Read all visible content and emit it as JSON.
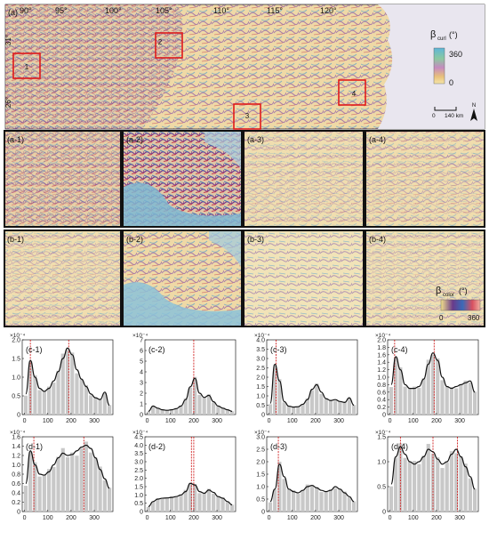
{
  "panel_a": {
    "label": "(a)",
    "lon_labels": [
      "90°",
      "95°",
      "100°",
      "105°",
      "110°",
      "115°",
      "120°"
    ],
    "lat_labels": [
      "31°",
      "26°"
    ],
    "roi_labels": [
      "1",
      "2",
      "3",
      "4"
    ],
    "legend": {
      "symbol": "β",
      "subscript": "curl",
      "unit": "(°)",
      "max": "360",
      "min": "0"
    },
    "scalebar": {
      "zero": "0",
      "dist": "140 km"
    },
    "north": "N"
  },
  "row_a_labels": [
    "(a-1)",
    "(a-2)",
    "(a-3)",
    "(a-4)"
  ],
  "row_b_labels": [
    "(b-1)",
    "(b-2)",
    "(b-3)",
    "(b-4)"
  ],
  "legend_b": {
    "symbol": "β",
    "subscript": "color",
    "unit": "(°)",
    "min": "0",
    "max": "360"
  },
  "colors": {
    "map_yellow": "#f0dca0",
    "map_purple": "#8a5a9a",
    "map_blue": "#6ea8c8",
    "map_red": "#c84850",
    "sea": "#e8e6ee",
    "roi_box": "#e01b1b",
    "curve": "#111111",
    "bar": "#c8c8c8",
    "peak_line": "#d02020"
  },
  "chart_data": [
    {
      "type": "bar",
      "label": "(c-1)",
      "exponent": "×10⁻⁴",
      "ylim": [
        0,
        2.0
      ],
      "yticks": [
        "0",
        "0.5",
        "1.0",
        "1.5",
        "2.0"
      ],
      "xticks": [
        "0",
        "100",
        "200",
        "300"
      ],
      "xlim": [
        -10,
        380
      ],
      "x": [
        5,
        25,
        45,
        65,
        85,
        105,
        125,
        145,
        165,
        185,
        205,
        225,
        245,
        265,
        285,
        305,
        325,
        345,
        365
      ],
      "curve": [
        0.55,
        1.45,
        1.0,
        0.7,
        0.62,
        0.7,
        0.9,
        1.15,
        1.5,
        1.78,
        1.6,
        1.2,
        0.95,
        0.75,
        0.55,
        0.45,
        0.4,
        0.6,
        0.25
      ],
      "peaks": [
        25,
        190
      ]
    },
    {
      "type": "bar",
      "label": "(c-2)",
      "exponent": "×10⁻⁴",
      "ylim": [
        0,
        7
      ],
      "yticks": [
        "0",
        "1",
        "2",
        "3",
        "4",
        "5",
        "6",
        "7"
      ],
      "xticks": [
        "0",
        "100",
        "200",
        "300"
      ],
      "xlim": [
        -10,
        380
      ],
      "x": [
        5,
        25,
        45,
        65,
        85,
        105,
        125,
        145,
        165,
        185,
        205,
        225,
        245,
        265,
        285,
        305,
        325,
        345,
        365
      ],
      "curve": [
        0.3,
        0.8,
        0.6,
        0.45,
        0.4,
        0.45,
        0.55,
        0.8,
        1.4,
        2.6,
        3.4,
        2.0,
        1.6,
        1.8,
        1.2,
        0.8,
        0.6,
        0.45,
        0.3
      ],
      "peaks": [
        200
      ]
    },
    {
      "type": "bar",
      "label": "(c-3)",
      "exponent": "×10⁻⁴",
      "ylim": [
        0,
        4.0
      ],
      "yticks": [
        "0",
        "0.5",
        "1.0",
        "1.5",
        "2.0",
        "2.5",
        "3.0",
        "3.5",
        "4.0"
      ],
      "xticks": [
        "0",
        "100",
        "200",
        "300"
      ],
      "xlim": [
        -10,
        380
      ],
      "x": [
        5,
        25,
        45,
        65,
        85,
        105,
        125,
        145,
        165,
        185,
        205,
        225,
        245,
        265,
        285,
        305,
        325,
        345,
        365
      ],
      "curve": [
        0.6,
        2.7,
        1.8,
        0.7,
        0.45,
        0.4,
        0.42,
        0.55,
        0.8,
        1.35,
        1.6,
        1.2,
        0.85,
        0.75,
        0.8,
        0.7,
        0.65,
        0.9,
        0.5
      ],
      "peaks": [
        30
      ]
    },
    {
      "type": "bar",
      "label": "(c-4)",
      "exponent": "×10⁻⁴",
      "ylim": [
        0,
        2.0
      ],
      "yticks": [
        "0",
        "0.2",
        "0.4",
        "0.6",
        "0.8",
        "1.0",
        "1.2",
        "1.4",
        "1.6",
        "1.8",
        "2.0"
      ],
      "xticks": [
        "0",
        "100",
        "200",
        "300"
      ],
      "xlim": [
        -10,
        380
      ],
      "x": [
        5,
        25,
        45,
        65,
        85,
        105,
        125,
        145,
        165,
        185,
        205,
        225,
        245,
        265,
        285,
        305,
        325,
        345,
        365
      ],
      "curve": [
        0.8,
        1.55,
        1.2,
        0.8,
        0.7,
        0.7,
        0.75,
        0.95,
        1.35,
        1.65,
        1.45,
        1.0,
        0.75,
        0.7,
        0.75,
        0.8,
        0.85,
        0.9,
        0.6
      ],
      "peaks": [
        20,
        190
      ]
    },
    {
      "type": "bar",
      "label": "(d-1)",
      "exponent": "×10⁻⁴",
      "ylim": [
        0,
        1.6
      ],
      "yticks": [
        "0",
        "0.2",
        "0.4",
        "0.6",
        "0.8",
        "1.0",
        "1.2",
        "1.4",
        "1.6"
      ],
      "xticks": [
        "0",
        "100",
        "200",
        "300"
      ],
      "xlim": [
        -10,
        380
      ],
      "x": [
        5,
        25,
        45,
        65,
        85,
        105,
        125,
        145,
        165,
        185,
        205,
        225,
        245,
        265,
        285,
        305,
        325,
        345,
        365
      ],
      "curve": [
        0.6,
        1.3,
        1.0,
        0.8,
        0.78,
        0.85,
        1.0,
        1.15,
        1.25,
        1.2,
        1.22,
        1.3,
        1.38,
        1.42,
        1.35,
        1.15,
        0.9,
        0.7,
        0.5
      ],
      "peaks": [
        40,
        255
      ]
    },
    {
      "type": "bar",
      "label": "(d-2)",
      "exponent": "×10⁻⁴",
      "ylim": [
        0,
        4.5
      ],
      "yticks": [
        "0",
        "0.5",
        "1.0",
        "1.5",
        "2.0",
        "2.5",
        "3.0",
        "3.5",
        "4.0",
        "4.5"
      ],
      "xticks": [
        "0",
        "100",
        "200",
        "300"
      ],
      "xlim": [
        -10,
        380
      ],
      "x": [
        5,
        25,
        45,
        65,
        85,
        105,
        125,
        145,
        165,
        185,
        205,
        225,
        245,
        265,
        285,
        305,
        325,
        345,
        365
      ],
      "curve": [
        0.3,
        0.6,
        0.75,
        0.8,
        0.82,
        0.85,
        0.9,
        1.0,
        1.2,
        1.7,
        1.6,
        1.2,
        1.1,
        1.3,
        1.15,
        0.9,
        0.8,
        0.6,
        0.4
      ],
      "peaks": [
        190,
        200
      ]
    },
    {
      "type": "bar",
      "label": "(d-3)",
      "exponent": "×10⁻⁴",
      "ylim": [
        0,
        3.0
      ],
      "yticks": [
        "0",
        "0.5",
        "1.0",
        "1.5",
        "2.0",
        "2.5",
        "3.0"
      ],
      "xticks": [
        "0",
        "100",
        "200",
        "300"
      ],
      "xlim": [
        -10,
        380
      ],
      "x": [
        5,
        25,
        45,
        65,
        85,
        105,
        125,
        145,
        165,
        185,
        205,
        225,
        245,
        265,
        285,
        305,
        325,
        345,
        365
      ],
      "curve": [
        0.4,
        0.9,
        1.9,
        1.4,
        0.9,
        0.8,
        0.75,
        0.85,
        1.0,
        1.05,
        0.95,
        0.85,
        0.8,
        0.85,
        1.0,
        0.9,
        0.75,
        0.6,
        0.4
      ],
      "peaks": [
        40
      ]
    },
    {
      "type": "bar",
      "label": "(d-4)",
      "exponent": "×10⁻⁴",
      "ylim": [
        0,
        1.5
      ],
      "yticks": [
        "0",
        "0.5",
        "1.0",
        "1.5"
      ],
      "xticks": [
        "0",
        "100",
        "200",
        "300"
      ],
      "xlim": [
        -10,
        380
      ],
      "x": [
        5,
        25,
        45,
        65,
        85,
        105,
        125,
        145,
        165,
        185,
        205,
        225,
        245,
        265,
        285,
        305,
        325,
        345,
        365
      ],
      "curve": [
        0.55,
        1.1,
        1.3,
        1.15,
        1.0,
        0.95,
        1.0,
        1.1,
        1.25,
        1.2,
        1.05,
        0.95,
        1.0,
        1.15,
        1.25,
        1.1,
        0.9,
        0.7,
        0.45
      ],
      "peaks": [
        45,
        185,
        290
      ]
    }
  ]
}
